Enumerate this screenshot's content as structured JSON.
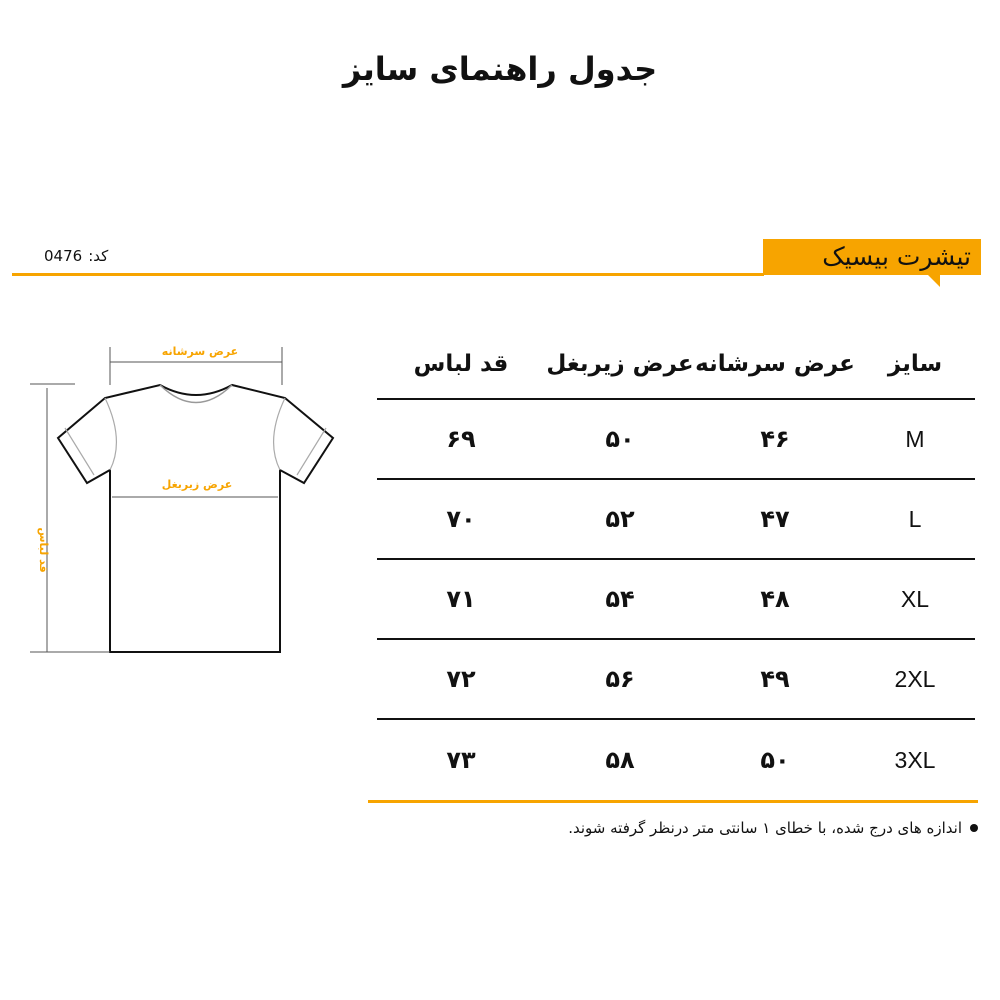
{
  "title": "جدول راهنمای سایز",
  "product": {
    "name": "تیشرت بیسیک",
    "code_label": "کد:",
    "code": "0476"
  },
  "table": {
    "headers": [
      "سایز",
      "عرض سرشانه",
      "عرض زیربغل",
      "قد لباس"
    ],
    "rows": [
      [
        "M",
        "۴۶",
        "۵۰",
        "۶۹"
      ],
      [
        "L",
        "۴۷",
        "۵۲",
        "۷۰"
      ],
      [
        "XL",
        "۴۸",
        "۵۴",
        "۷۱"
      ],
      [
        "2XL",
        "۴۹",
        "۵۶",
        "۷۲"
      ],
      [
        "3XL",
        "۵۰",
        "۵۸",
        "۷۳"
      ]
    ]
  },
  "diagram": {
    "shoulder": "عرض سرشانه",
    "chest": "عرض زیربغل",
    "length": "قد لباس"
  },
  "note": "اندازه های درج شده، با خطای ۱ سانتی متر درنظر گرفته شوند.",
  "colors": {
    "accent": "#f7a400"
  }
}
